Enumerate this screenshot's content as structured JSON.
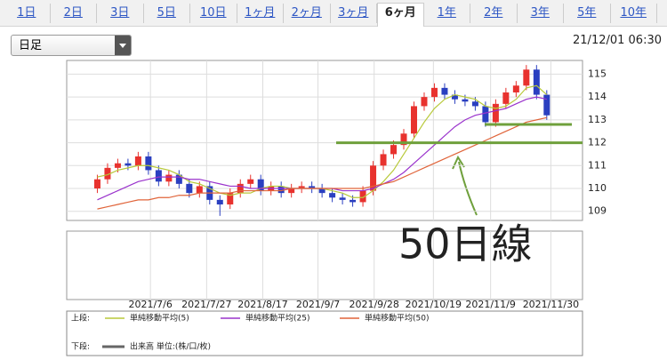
{
  "tabs": [
    "1日",
    "2日",
    "3日",
    "5日",
    "10日",
    "1ヶ月",
    "2ヶ月",
    "3ヶ月",
    "6ヶ月",
    "1年",
    "2年",
    "3年",
    "5年",
    "10年"
  ],
  "selected_tab": 8,
  "period_select": "日足",
  "timestamp": "21/12/01 06:30",
  "chart_data": {
    "type": "candlestick",
    "up_color": "#e8322e",
    "down_color": "#2a3fc0",
    "ylim": [
      108.6,
      115.6
    ],
    "yticks": [
      109,
      110,
      111,
      112,
      113,
      114,
      115
    ],
    "xlim": [
      -3,
      47.5
    ],
    "xticks": [
      {
        "value": 5.2,
        "label": "2021/7/6"
      },
      {
        "value": 10.7,
        "label": "2021/7/27"
      },
      {
        "value": 16.2,
        "label": "2021/8/17"
      },
      {
        "value": 21.6,
        "label": "2021/9/7"
      },
      {
        "value": 27.1,
        "label": "2021/9/28"
      },
      {
        "value": 32.9,
        "label": "2021/10/19"
      },
      {
        "value": 38.5,
        "label": "2021/11/9"
      },
      {
        "value": 44.4,
        "label": "2021/11/30"
      }
    ],
    "grid": true,
    "open": [
      110.0,
      110.4,
      110.9,
      111.1,
      111.0,
      111.4,
      110.8,
      110.3,
      110.6,
      110.2,
      109.8,
      110.1,
      109.5,
      109.3,
      109.8,
      110.2,
      110.4,
      109.9,
      110.1,
      109.8,
      110.0,
      110.1,
      110.0,
      109.8,
      109.6,
      109.5,
      109.4,
      109.9,
      111.0,
      111.5,
      111.9,
      112.4,
      113.6,
      114.0,
      114.4,
      114.1,
      113.9,
      113.8,
      113.6,
      112.9,
      113.7,
      114.2,
      114.5,
      115.2,
      114.1
    ],
    "high": [
      110.6,
      111.1,
      111.3,
      111.3,
      111.6,
      111.6,
      111.0,
      110.8,
      110.8,
      110.4,
      110.3,
      110.3,
      109.7,
      110.0,
      110.4,
      110.6,
      110.6,
      110.3,
      110.3,
      110.2,
      110.3,
      110.3,
      110.2,
      110.0,
      109.8,
      109.7,
      110.1,
      111.2,
      111.7,
      112.1,
      112.6,
      113.8,
      114.2,
      114.6,
      114.6,
      114.3,
      114.1,
      114.0,
      113.8,
      113.9,
      114.4,
      114.7,
      115.4,
      115.4,
      114.3
    ],
    "low": [
      109.8,
      110.2,
      110.7,
      110.8,
      110.8,
      110.6,
      110.1,
      110.1,
      110.0,
      109.6,
      109.6,
      109.3,
      108.8,
      109.1,
      109.6,
      110.0,
      109.7,
      109.7,
      109.6,
      109.6,
      109.8,
      109.8,
      109.6,
      109.4,
      109.3,
      109.2,
      109.2,
      109.7,
      110.8,
      111.3,
      111.7,
      112.2,
      113.4,
      113.8,
      113.9,
      113.7,
      113.6,
      113.4,
      112.7,
      112.7,
      113.5,
      114.0,
      114.3,
      113.9,
      113.0
    ],
    "close": [
      110.4,
      110.9,
      111.1,
      111.0,
      111.4,
      110.8,
      110.3,
      110.6,
      110.2,
      109.8,
      110.1,
      109.5,
      109.3,
      109.8,
      110.2,
      110.4,
      109.9,
      110.1,
      109.8,
      110.0,
      110.1,
      110.0,
      109.8,
      109.6,
      109.5,
      109.4,
      109.9,
      111.0,
      111.5,
      111.9,
      112.4,
      113.6,
      114.0,
      114.4,
      114.1,
      113.9,
      113.8,
      113.6,
      112.9,
      113.7,
      114.2,
      114.5,
      115.2,
      114.1,
      113.2
    ],
    "series": [
      {
        "name": "単純移動平均(5)",
        "color": "#b8c93a",
        "values": [
          110.5,
          110.6,
          110.8,
          110.9,
          111.0,
          111.0,
          110.9,
          110.8,
          110.6,
          110.3,
          110.2,
          110.0,
          109.8,
          109.7,
          109.8,
          109.8,
          110.0,
          110.1,
          110.1,
          110.0,
          110.0,
          110.0,
          110.0,
          109.9,
          109.8,
          109.6,
          109.6,
          109.9,
          110.3,
          110.8,
          111.5,
          112.2,
          112.9,
          113.5,
          113.9,
          114.1,
          114.0,
          113.9,
          113.6,
          113.5,
          113.6,
          113.9,
          114.4,
          114.5,
          114.1
        ]
      },
      {
        "name": "単純移動平均(25)",
        "color": "#9a33cc",
        "values": [
          109.5,
          109.7,
          109.9,
          110.1,
          110.3,
          110.4,
          110.5,
          110.5,
          110.5,
          110.4,
          110.4,
          110.3,
          110.2,
          110.1,
          110.1,
          110.0,
          110.0,
          110.0,
          110.0,
          110.0,
          110.0,
          110.0,
          110.0,
          110.0,
          109.9,
          109.9,
          109.9,
          110.0,
          110.2,
          110.4,
          110.7,
          111.1,
          111.5,
          111.9,
          112.3,
          112.7,
          113.0,
          113.2,
          113.3,
          113.4,
          113.5,
          113.7,
          113.9,
          114.0,
          113.9
        ]
      },
      {
        "name": "単純移動平均(50)",
        "color": "#e0643a",
        "values": [
          109.1,
          109.2,
          109.3,
          109.4,
          109.5,
          109.5,
          109.6,
          109.6,
          109.7,
          109.7,
          109.8,
          109.8,
          109.8,
          109.8,
          109.9,
          109.9,
          109.9,
          109.9,
          109.9,
          110.0,
          110.0,
          110.0,
          110.0,
          110.0,
          110.0,
          110.0,
          110.0,
          110.1,
          110.2,
          110.3,
          110.5,
          110.7,
          110.9,
          111.1,
          111.3,
          111.5,
          111.7,
          111.9,
          112.1,
          112.3,
          112.5,
          112.7,
          112.9,
          113.0,
          113.1
        ]
      }
    ],
    "upper_label": "上段:",
    "lower_label": "下段:",
    "lower_series": "出来高 単位:(株/口/枚)",
    "annotation": {
      "text": "50日線",
      "color": "#6fa03c",
      "lines": [
        112,
        112.8
      ]
    }
  }
}
